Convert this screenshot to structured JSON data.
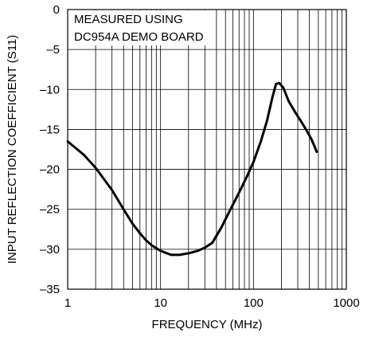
{
  "chart_data": {
    "type": "line",
    "title": "",
    "xlabel": "FREQUENCY (MHz)",
    "ylabel": "INPUT REFLECTION COEFFICIENT (S11)",
    "x_scale": "log",
    "xlim": [
      1,
      1000
    ],
    "ylim": [
      -35,
      0
    ],
    "x_ticks": [
      1,
      10,
      100,
      1000
    ],
    "x_tick_labels": [
      "1",
      "10",
      "100",
      "1000"
    ],
    "y_ticks": [
      0,
      -5,
      -10,
      -15,
      -20,
      -25,
      -30,
      -35
    ],
    "y_tick_labels": [
      "0",
      "–5",
      "–10",
      "–15",
      "–20",
      "–25",
      "–30",
      "–35"
    ],
    "grid": true,
    "annotation": [
      "MEASURED USING",
      "DC954A DEMO BOARD"
    ],
    "series": [
      {
        "color": "#000000",
        "x": [
          1,
          1.5,
          2,
          3,
          4,
          5,
          6,
          7,
          8,
          10,
          13,
          16,
          20,
          25,
          30,
          36,
          45,
          55,
          70,
          85,
          100,
          120,
          140,
          160,
          175,
          190,
          210,
          240,
          280,
          330,
          380,
          420,
          450,
          480
        ],
        "y": [
          -16.5,
          -18.2,
          -19.8,
          -22.6,
          -25.0,
          -26.8,
          -28.0,
          -28.9,
          -29.5,
          -30.2,
          -30.7,
          -30.7,
          -30.5,
          -30.2,
          -29.8,
          -29.2,
          -27.3,
          -25.3,
          -22.9,
          -20.9,
          -19.1,
          -16.5,
          -13.9,
          -11.0,
          -9.3,
          -9.2,
          -9.8,
          -11.5,
          -12.8,
          -14.1,
          -15.3,
          -16.2,
          -17.0,
          -17.8
        ]
      }
    ]
  }
}
